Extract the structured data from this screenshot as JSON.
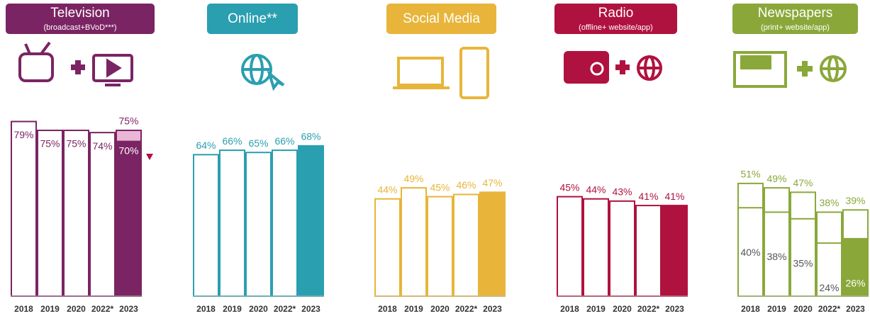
{
  "chart_data": [
    {
      "type": "bar",
      "title": "Television",
      "subtitle": "(broadcast+BVoD***)",
      "color": "#7b2463",
      "light": "#eab6d6",
      "categories": [
        "2018",
        "2019",
        "2020",
        "2022*",
        "2023"
      ],
      "values": [
        79,
        75,
        75,
        74,
        75
      ],
      "value_labels": [
        "79%",
        "75%",
        "75%",
        "74%",
        "75%"
      ],
      "sub_values": [
        null,
        null,
        null,
        null,
        70
      ],
      "sub_value_labels": [
        null,
        null,
        null,
        null,
        "70%"
      ]
    },
    {
      "type": "bar",
      "title": "Online**",
      "color": "#2a9fb0",
      "categories": [
        "2018",
        "2019",
        "2020",
        "2022*",
        "2023"
      ],
      "values": [
        64,
        66,
        65,
        66,
        68
      ],
      "value_labels": [
        "64%",
        "66%",
        "65%",
        "66%",
        "68%"
      ]
    },
    {
      "type": "bar",
      "title": "Social Media",
      "color": "#e8b53a",
      "categories": [
        "2018",
        "2019",
        "2020",
        "2022*",
        "2023"
      ],
      "values": [
        44,
        49,
        45,
        46,
        47
      ],
      "value_labels": [
        "44%",
        "49%",
        "45%",
        "46%",
        "47%"
      ]
    },
    {
      "type": "bar",
      "title": "Radio",
      "subtitle": "(offline+ website/app)",
      "color": "#b0123f",
      "categories": [
        "2018",
        "2019",
        "2020",
        "2022*",
        "2023"
      ],
      "values": [
        45,
        44,
        43,
        41,
        41
      ],
      "value_labels": [
        "45%",
        "44%",
        "43%",
        "41%",
        "41%"
      ]
    },
    {
      "type": "bar",
      "title": "Newspapers",
      "subtitle": "(print+ website/app)",
      "color": "#8aa83a",
      "categories": [
        "2018",
        "2019",
        "2020",
        "2022*",
        "2023"
      ],
      "values": [
        51,
        49,
        47,
        38,
        39
      ],
      "value_labels": [
        "51%",
        "49%",
        "47%",
        "38%",
        "39%"
      ],
      "sub_values": [
        40,
        38,
        35,
        24,
        26
      ],
      "sub_value_labels": [
        "40%",
        "38%",
        "35%",
        "24%",
        "26%"
      ]
    }
  ]
}
